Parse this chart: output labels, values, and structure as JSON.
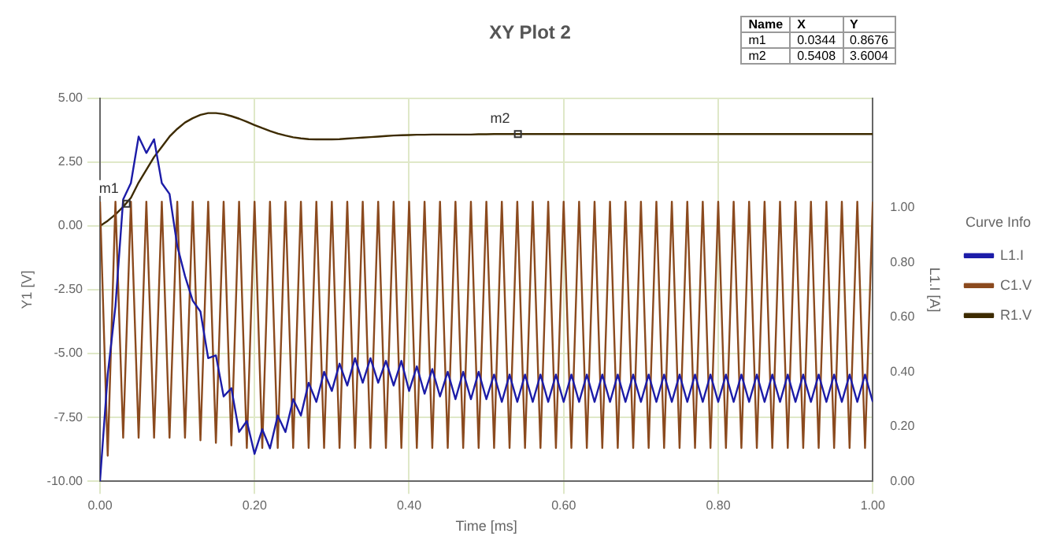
{
  "chart_data": {
    "type": "line",
    "title": "XY Plot 2",
    "xlabel": "Time [ms]",
    "ylabel": "Y1 [V]",
    "y2label": "L1.I [A]",
    "legend_title": "Curve Info",
    "legend": "right",
    "grid": true,
    "marker": "none",
    "x": [
      0,
      0.01,
      0.02,
      0.03,
      0.04,
      0.05,
      0.06,
      0.07,
      0.08,
      0.09,
      0.1,
      0.11,
      0.12,
      0.13,
      0.14,
      0.15,
      0.16,
      0.17,
      0.18,
      0.19,
      0.2,
      0.21,
      0.22,
      0.23,
      0.24,
      0.25,
      0.26,
      0.27,
      0.28,
      0.29,
      0.3,
      0.31,
      0.32,
      0.33,
      0.34,
      0.35,
      0.36,
      0.37,
      0.38,
      0.39,
      0.4,
      0.41,
      0.42,
      0.43,
      0.44,
      0.45,
      0.46,
      0.47,
      0.48,
      0.49,
      0.5,
      0.51,
      0.52,
      0.53,
      0.54,
      0.55,
      0.56,
      0.57,
      0.58,
      0.59,
      0.6,
      0.61,
      0.62,
      0.63,
      0.64,
      0.65,
      0.66,
      0.67,
      0.68,
      0.69,
      0.7,
      0.71,
      0.72,
      0.73,
      0.74,
      0.75,
      0.76,
      0.77,
      0.78,
      0.79,
      0.8,
      0.81,
      0.82,
      0.83,
      0.84,
      0.85,
      0.86,
      0.87,
      0.88,
      0.89,
      0.9,
      0.91,
      0.92,
      0.93,
      0.94,
      0.95,
      0.96,
      0.97,
      0.98,
      0.99,
      1
    ],
    "xlim": [
      0,
      1
    ],
    "xticks": [
      {
        "value": 0,
        "label": "0.00"
      },
      {
        "value": 0.2,
        "label": "0.20"
      },
      {
        "value": 0.4,
        "label": "0.40"
      },
      {
        "value": 0.6,
        "label": "0.60"
      },
      {
        "value": 0.8,
        "label": "0.80"
      },
      {
        "value": 1,
        "label": "1.00"
      }
    ],
    "ylim": [
      -10,
      5
    ],
    "yticks": [
      {
        "value": -10,
        "label": "-10.00"
      },
      {
        "value": -7.5,
        "label": "-7.50"
      },
      {
        "value": -5,
        "label": "-5.00"
      },
      {
        "value": -2.5,
        "label": "-2.50"
      },
      {
        "value": 0,
        "label": "0.00"
      },
      {
        "value": 2.5,
        "label": "2.50"
      },
      {
        "value": 5,
        "label": "5.00"
      }
    ],
    "y2lim": [
      0,
      1.4
    ],
    "y2ticks": [
      {
        "value": 0,
        "label": "0.00"
      },
      {
        "value": 0.2,
        "label": "0.20"
      },
      {
        "value": 0.4,
        "label": "0.40"
      },
      {
        "value": 0.6,
        "label": "0.60"
      },
      {
        "value": 0.8,
        "label": "0.80"
      },
      {
        "value": 1,
        "label": "1.00"
      }
    ],
    "series": [
      {
        "name": "L1.I",
        "color": "#1c1ca8",
        "axis": "y2",
        "values": [
          0,
          0.39,
          0.64,
          1.03,
          1.09,
          1.26,
          1.2,
          1.25,
          1.09,
          1.05,
          0.86,
          0.75,
          0.66,
          0.62,
          0.45,
          0.46,
          0.31,
          0.34,
          0.18,
          0.22,
          0.1,
          0.19,
          0.12,
          0.24,
          0.18,
          0.3,
          0.24,
          0.36,
          0.29,
          0.4,
          0.33,
          0.43,
          0.35,
          0.45,
          0.36,
          0.45,
          0.36,
          0.44,
          0.35,
          0.44,
          0.33,
          0.42,
          0.32,
          0.41,
          0.31,
          0.4,
          0.3,
          0.4,
          0.3,
          0.4,
          0.3,
          0.39,
          0.29,
          0.39,
          0.29,
          0.39,
          0.29,
          0.39,
          0.29,
          0.39,
          0.29,
          0.39,
          0.29,
          0.39,
          0.29,
          0.39,
          0.29,
          0.39,
          0.29,
          0.39,
          0.29,
          0.39,
          0.29,
          0.39,
          0.29,
          0.39,
          0.29,
          0.39,
          0.29,
          0.39,
          0.29,
          0.39,
          0.29,
          0.39,
          0.29,
          0.39,
          0.29,
          0.39,
          0.29,
          0.39,
          0.29,
          0.39,
          0.29,
          0.39,
          0.29,
          0.39,
          0.29,
          0.39,
          0.29,
          0.39,
          0.29
        ]
      },
      {
        "name": "C1.V",
        "color": "#8b4a1e",
        "values": [
          0.95,
          -9,
          0.95,
          -8.3,
          0.95,
          -8.3,
          0.95,
          -8.3,
          0.95,
          -8.3,
          0.95,
          -8.3,
          0.95,
          -8.4,
          0.95,
          -8.5,
          0.95,
          -8.6,
          0.95,
          -8.7,
          0.95,
          -8.7,
          0.95,
          -8.7,
          0.95,
          -8.7,
          0.95,
          -8.7,
          0.95,
          -8.7,
          0.95,
          -8.7,
          0.95,
          -8.7,
          0.95,
          -8.7,
          0.95,
          -8.7,
          0.95,
          -8.7,
          0.95,
          -8.7,
          0.95,
          -8.7,
          0.95,
          -8.7,
          0.95,
          -8.7,
          0.95,
          -8.7,
          0.95,
          -8.7,
          0.95,
          -8.7,
          0.95,
          -8.7,
          0.95,
          -8.7,
          0.95,
          -8.7,
          0.95,
          -8.7,
          0.95,
          -8.7,
          0.95,
          -8.7,
          0.95,
          -8.7,
          0.95,
          -8.7,
          0.95,
          -8.7,
          0.95,
          -8.7,
          0.95,
          -8.7,
          0.95,
          -8.7,
          0.95,
          -8.7,
          0.95,
          -8.7,
          0.95,
          -8.7,
          0.95,
          -8.7,
          0.95,
          -8.7,
          0.95,
          -8.7,
          0.95,
          -8.7,
          0.95,
          -8.7,
          0.95,
          -8.7,
          0.95,
          -8.7,
          0.95,
          -8.7,
          0.95
        ]
      },
      {
        "name": "R1.V",
        "color": "#3d2b00",
        "values": [
          0,
          0.2,
          0.45,
          0.75,
          1.1,
          1.7,
          2.2,
          2.7,
          3.1,
          3.5,
          3.8,
          4.05,
          4.22,
          4.35,
          4.42,
          4.42,
          4.38,
          4.3,
          4.2,
          4.08,
          3.95,
          3.83,
          3.72,
          3.62,
          3.54,
          3.47,
          3.43,
          3.4,
          3.39,
          3.39,
          3.39,
          3.4,
          3.42,
          3.44,
          3.46,
          3.48,
          3.5,
          3.52,
          3.54,
          3.55,
          3.56,
          3.57,
          3.57,
          3.58,
          3.58,
          3.58,
          3.58,
          3.58,
          3.58,
          3.59,
          3.59,
          3.6,
          3.6,
          3.6,
          3.6,
          3.6,
          3.6,
          3.6,
          3.6,
          3.6,
          3.6,
          3.6,
          3.6,
          3.6,
          3.6,
          3.6,
          3.6,
          3.6,
          3.6,
          3.6,
          3.6,
          3.6,
          3.6,
          3.6,
          3.6,
          3.6,
          3.6,
          3.6,
          3.6,
          3.6,
          3.6,
          3.6,
          3.6,
          3.6,
          3.6,
          3.6,
          3.6,
          3.6,
          3.6,
          3.6,
          3.6,
          3.6,
          3.6,
          3.6,
          3.6,
          3.6,
          3.6,
          3.6,
          3.6,
          3.6,
          3.6
        ]
      }
    ],
    "annotations": [
      "Name",
      "X",
      "Y",
      "m1",
      "0.0344",
      "0.8676",
      "m2",
      "0.5408",
      "3.6004",
      {
        "text": "m1",
        "x": 0.0344,
        "y": 0.8676
      },
      {
        "text": "m2",
        "x": 0.5408,
        "y": 3.6004
      }
    ]
  }
}
